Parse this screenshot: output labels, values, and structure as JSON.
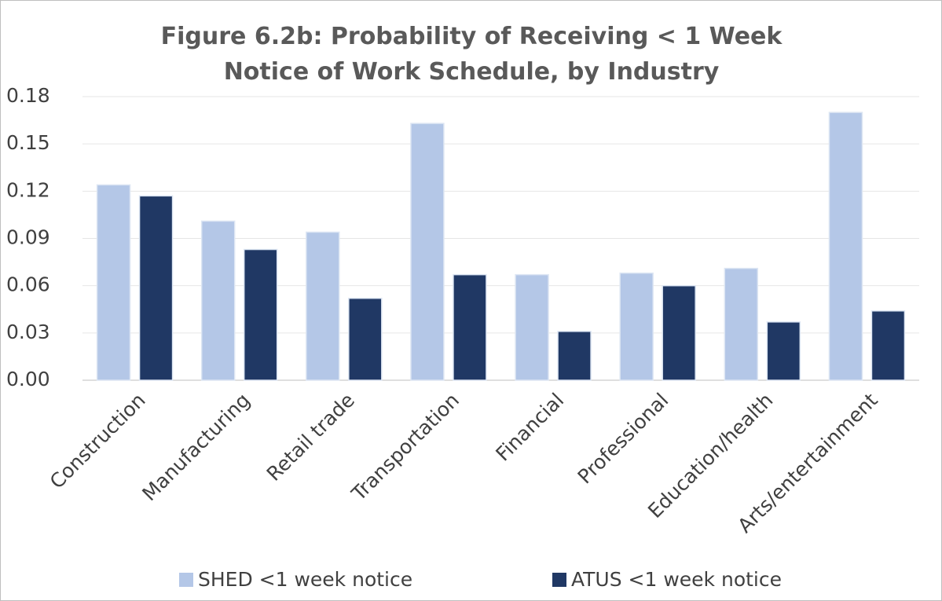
{
  "chart_data": {
    "type": "bar",
    "title": "Figure 6.2b: Probability of Receiving < 1 Week Notice of Work Schedule, by Industry",
    "categories": [
      "Construction",
      "Manufacturing",
      "Retail trade",
      "Transportation",
      "Financial",
      "Professional",
      "Education/health",
      "Arts/entertainment"
    ],
    "series": [
      {
        "name": "SHED <1 week notice",
        "color": "#b4c7e7",
        "values": [
          0.124,
          0.101,
          0.094,
          0.163,
          0.067,
          0.068,
          0.071,
          0.17
        ]
      },
      {
        "name": "ATUS <1 week notice",
        "color": "#203864",
        "values": [
          0.117,
          0.083,
          0.052,
          0.067,
          0.031,
          0.06,
          0.037,
          0.044
        ]
      }
    ],
    "ylim": [
      0,
      0.18
    ],
    "yticks": [
      {
        "value": 0,
        "label": "0.00"
      },
      0.03,
      0.06,
      0.09,
      0.12,
      0.15,
      0.18
    ],
    "grid": true,
    "legend": "bottom"
  }
}
